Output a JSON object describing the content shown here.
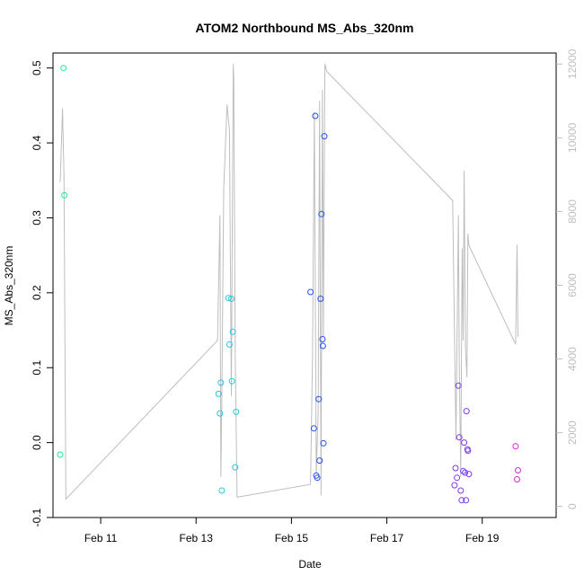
{
  "chart_data": {
    "type": "scatter",
    "title": "ATOM2 Northbound MS_Abs_320nm",
    "xlabel": "Date",
    "ylabel": "MS_Abs_320nm",
    "x_is_date": true,
    "xlim": [
      10.0,
      20.55
    ],
    "ylim": [
      -0.1,
      0.52
    ],
    "y_ticks": [
      -0.1,
      0.0,
      0.1,
      0.2,
      0.3,
      0.4,
      0.5
    ],
    "y_tick_labels": [
      "-0.1",
      "0.0",
      "0.1",
      "0.2",
      "0.3",
      "0.4",
      "0.5"
    ],
    "x_ticks": [
      11,
      13,
      15,
      17,
      19
    ],
    "x_tick_labels": [
      "Feb 11",
      "Feb 13",
      "Feb 15",
      "Feb 17",
      "Feb 19"
    ],
    "secondary_axis": {
      "ylim": [
        -300,
        12300
      ],
      "ticks": [
        0,
        2000,
        4000,
        6000,
        8000,
        10000,
        12000
      ],
      "tick_labels": [
        "0",
        "2000",
        "4000",
        "6000",
        "8000",
        "10000",
        "12000"
      ],
      "color": "#bebebe"
    },
    "scatter_points": [
      {
        "x": 10.15,
        "y": -0.016,
        "color": "#20e6a0"
      },
      {
        "x": 10.22,
        "y": 0.5,
        "color": "#20e6a0"
      },
      {
        "x": 10.24,
        "y": 0.33,
        "color": "#20e6a0"
      },
      {
        "x": 13.47,
        "y": 0.065,
        "color": "#2ac6e0"
      },
      {
        "x": 13.5,
        "y": 0.039,
        "color": "#2ac6e0"
      },
      {
        "x": 13.52,
        "y": 0.08,
        "color": "#2ac6e0"
      },
      {
        "x": 13.54,
        "y": -0.064,
        "color": "#2ac6e0"
      },
      {
        "x": 13.68,
        "y": 0.193,
        "color": "#2ac6e0"
      },
      {
        "x": 13.7,
        "y": 0.131,
        "color": "#2ac6e0"
      },
      {
        "x": 13.74,
        "y": 0.192,
        "color": "#2ac6e0"
      },
      {
        "x": 13.75,
        "y": 0.082,
        "color": "#2ac6e0"
      },
      {
        "x": 13.77,
        "y": 0.148,
        "color": "#2ac6e0"
      },
      {
        "x": 13.82,
        "y": -0.033,
        "color": "#2ac6e0"
      },
      {
        "x": 13.84,
        "y": 0.041,
        "color": "#2ac6e0"
      },
      {
        "x": 15.4,
        "y": 0.201,
        "color": "#2552ee"
      },
      {
        "x": 15.47,
        "y": 0.019,
        "color": "#2552ee"
      },
      {
        "x": 15.5,
        "y": 0.436,
        "color": "#2552ee"
      },
      {
        "x": 15.52,
        "y": -0.044,
        "color": "#2552ee"
      },
      {
        "x": 15.54,
        "y": -0.047,
        "color": "#2552ee"
      },
      {
        "x": 15.57,
        "y": 0.058,
        "color": "#2552ee"
      },
      {
        "x": 15.59,
        "y": -0.024,
        "color": "#2552ee"
      },
      {
        "x": 15.61,
        "y": 0.192,
        "color": "#2552ee"
      },
      {
        "x": 15.63,
        "y": 0.305,
        "color": "#2552ee"
      },
      {
        "x": 15.65,
        "y": 0.138,
        "color": "#2552ee"
      },
      {
        "x": 15.66,
        "y": 0.129,
        "color": "#2552ee"
      },
      {
        "x": 15.67,
        "y": -0.001,
        "color": "#2552ee"
      },
      {
        "x": 15.69,
        "y": 0.409,
        "color": "#2552ee"
      },
      {
        "x": 18.42,
        "y": -0.057,
        "color": "#7a3cf0"
      },
      {
        "x": 18.44,
        "y": -0.034,
        "color": "#7a3cf0"
      },
      {
        "x": 18.47,
        "y": -0.047,
        "color": "#7a3cf0"
      },
      {
        "x": 18.5,
        "y": 0.076,
        "color": "#7a3cf0"
      },
      {
        "x": 18.52,
        "y": 0.007,
        "color": "#7a3cf0"
      },
      {
        "x": 18.55,
        "y": -0.064,
        "color": "#7a3cf0"
      },
      {
        "x": 18.57,
        "y": -0.077,
        "color": "#7a3cf0"
      },
      {
        "x": 18.6,
        "y": -0.038,
        "color": "#7a3cf0"
      },
      {
        "x": 18.62,
        "y": 0.0,
        "color": "#7a3cf0"
      },
      {
        "x": 18.64,
        "y": -0.04,
        "color": "#7a3cf0"
      },
      {
        "x": 18.66,
        "y": -0.077,
        "color": "#7a3cf0"
      },
      {
        "x": 18.67,
        "y": 0.042,
        "color": "#7a3cf0"
      },
      {
        "x": 18.69,
        "y": -0.009,
        "color": "#7a3cf0"
      },
      {
        "x": 18.7,
        "y": -0.011,
        "color": "#7a3cf0"
      },
      {
        "x": 18.72,
        "y": -0.042,
        "color": "#7a3cf0"
      },
      {
        "x": 19.7,
        "y": -0.005,
        "color": "#d22ad6"
      },
      {
        "x": 19.73,
        "y": -0.049,
        "color": "#d22ad6"
      },
      {
        "x": 19.75,
        "y": -0.037,
        "color": "#d22ad6"
      }
    ],
    "secondary_line": {
      "color": "#bebebe",
      "x": [
        10.15,
        10.2,
        10.23,
        10.27,
        13.45,
        13.5,
        13.52,
        13.54,
        13.58,
        13.65,
        13.7,
        13.74,
        13.78,
        13.79,
        13.82,
        13.86,
        15.4,
        15.44,
        15.48,
        15.52,
        15.56,
        15.59,
        15.62,
        15.65,
        15.67,
        15.7,
        15.74,
        18.38,
        18.45,
        18.5,
        18.52,
        18.55,
        18.58,
        18.6,
        18.62,
        18.65,
        18.68,
        18.7,
        18.72,
        18.75,
        19.7,
        19.73,
        19.75
      ],
      "y": [
        8800,
        10800,
        9000,
        200,
        4500,
        7900,
        800,
        2900,
        8600,
        10900,
        10200,
        3000,
        12000,
        11600,
        4100,
        250,
        600,
        4000,
        10700,
        900,
        2500,
        11000,
        300,
        11300,
        4600,
        12000,
        11800,
        8300,
        1800,
        7900,
        3800,
        800,
        7000,
        4500,
        9100,
        4300,
        3500,
        7400,
        7100,
        7000,
        4400,
        7100,
        4600
      ]
    }
  }
}
